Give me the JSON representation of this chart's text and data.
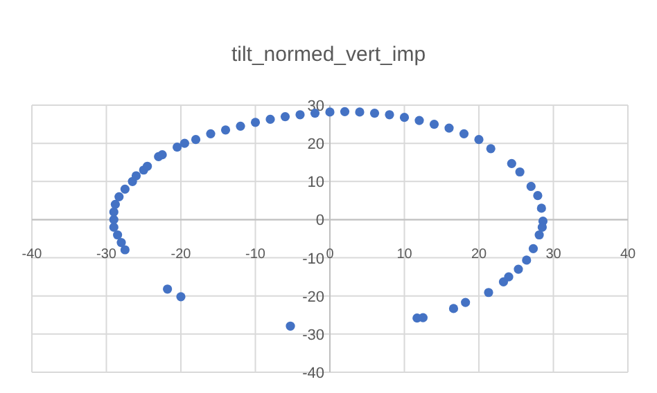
{
  "chart_data": {
    "type": "scatter",
    "title": "tilt_normed_vert_imp",
    "xlim": [
      -40,
      40
    ],
    "xticks": [
      -40,
      -30,
      -20,
      -10,
      0,
      10,
      20,
      30,
      40
    ],
    "ylim": [
      -40,
      30
    ],
    "yticks": [
      -40,
      -30,
      -20,
      -10,
      0,
      10,
      20,
      30
    ],
    "grid": true,
    "marker": "circle",
    "series": [
      {
        "color": "#4472c4",
        "x": [
          -27.5,
          -28,
          -28.5,
          -29,
          -29,
          -29,
          -28.8,
          -28.3,
          -27.5,
          -26.5,
          -26,
          -25,
          -24.5,
          -23,
          -22.5,
          -20.5,
          -19.5,
          -18,
          -16,
          -14,
          -12,
          -10,
          -8,
          -6,
          -4,
          -2,
          0,
          2,
          4,
          6,
          8,
          10,
          12,
          14,
          16,
          18,
          20,
          21.6,
          24.4,
          25.5,
          27,
          27.9,
          28.4,
          28.6,
          28.5,
          28.1,
          27.3,
          26.4,
          25.3,
          24,
          23.3,
          21.3,
          18.2,
          16.6,
          12.5,
          11.7,
          -21.8,
          -20,
          -5.3
        ],
        "values": [
          -7.9,
          -6,
          -4,
          -2,
          0,
          2,
          4,
          6,
          8,
          10,
          11.5,
          13,
          14,
          16.5,
          17,
          19,
          20,
          21,
          22.5,
          23.5,
          24.5,
          25.5,
          26.3,
          27,
          27.5,
          27.9,
          28.2,
          28.3,
          28.2,
          27.9,
          27.5,
          26.8,
          26,
          25,
          24,
          22.5,
          21,
          18.6,
          14.7,
          12.5,
          8.7,
          6.3,
          3,
          -0.4,
          -2,
          -4,
          -7.6,
          -10.6,
          -13,
          -15,
          -16.3,
          -19.1,
          -21.7,
          -23.3,
          -25.7,
          -25.8,
          -18.2,
          -20.2,
          -27.9
        ]
      }
    ]
  }
}
